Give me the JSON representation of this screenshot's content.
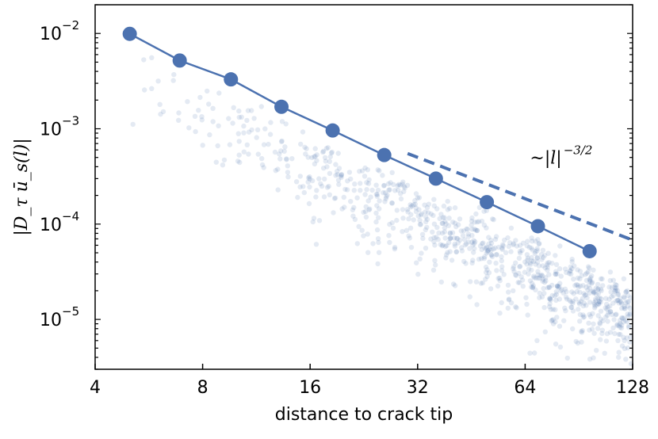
{
  "chart_data": {
    "type": "scatter",
    "xlabel": "distance to crack tip",
    "ylabel": "|D_τ ū_s(l)|",
    "x_scale": "log2",
    "y_scale": "log10",
    "xlim": [
      4,
      128
    ],
    "ylim": [
      3e-06,
      0.02
    ],
    "x_ticks": [
      4,
      8,
      16,
      32,
      64,
      128
    ],
    "x_tick_labels": [
      "4",
      "8",
      "16",
      "32",
      "64",
      "128"
    ],
    "y_ticks": [
      1e-05,
      0.0001,
      0.001,
      0.01
    ],
    "y_tick_labels": [
      {
        "base": "10",
        "exp": "−5"
      },
      {
        "base": "10",
        "exp": "−4"
      },
      {
        "base": "10",
        "exp": "−3"
      },
      {
        "base": "10",
        "exp": "−2"
      }
    ],
    "grid": false,
    "series": [
      {
        "role": "mean",
        "color": "#4c72b0",
        "x": [
          5.0,
          6.9,
          9.6,
          13.3,
          18.5,
          25.8,
          36.0,
          50.0,
          69.5,
          97.0
        ],
        "y": [
          0.0099,
          0.0052,
          0.0033,
          0.0017,
          0.00096,
          0.00053,
          0.0003,
          0.00017,
          9.5e-05,
          5.2e-05
        ]
      },
      {
        "role": "reference",
        "style": "dashed",
        "color": "#4c72b0",
        "x": [
          30.0,
          128.0
        ],
        "y": [
          0.00055,
          6.8e-05
        ]
      },
      {
        "role": "individual",
        "color": "#4c72b0",
        "opacity": 0.15,
        "cloud": {
          "count": 900,
          "x_min": 4.5,
          "x_max": 128,
          "spread_decades": 1.0
        }
      }
    ],
    "annotations": [
      {
        "text": "~|l|",
        "exp": "−3/2",
        "x": 66,
        "y": 0.00043
      }
    ]
  }
}
